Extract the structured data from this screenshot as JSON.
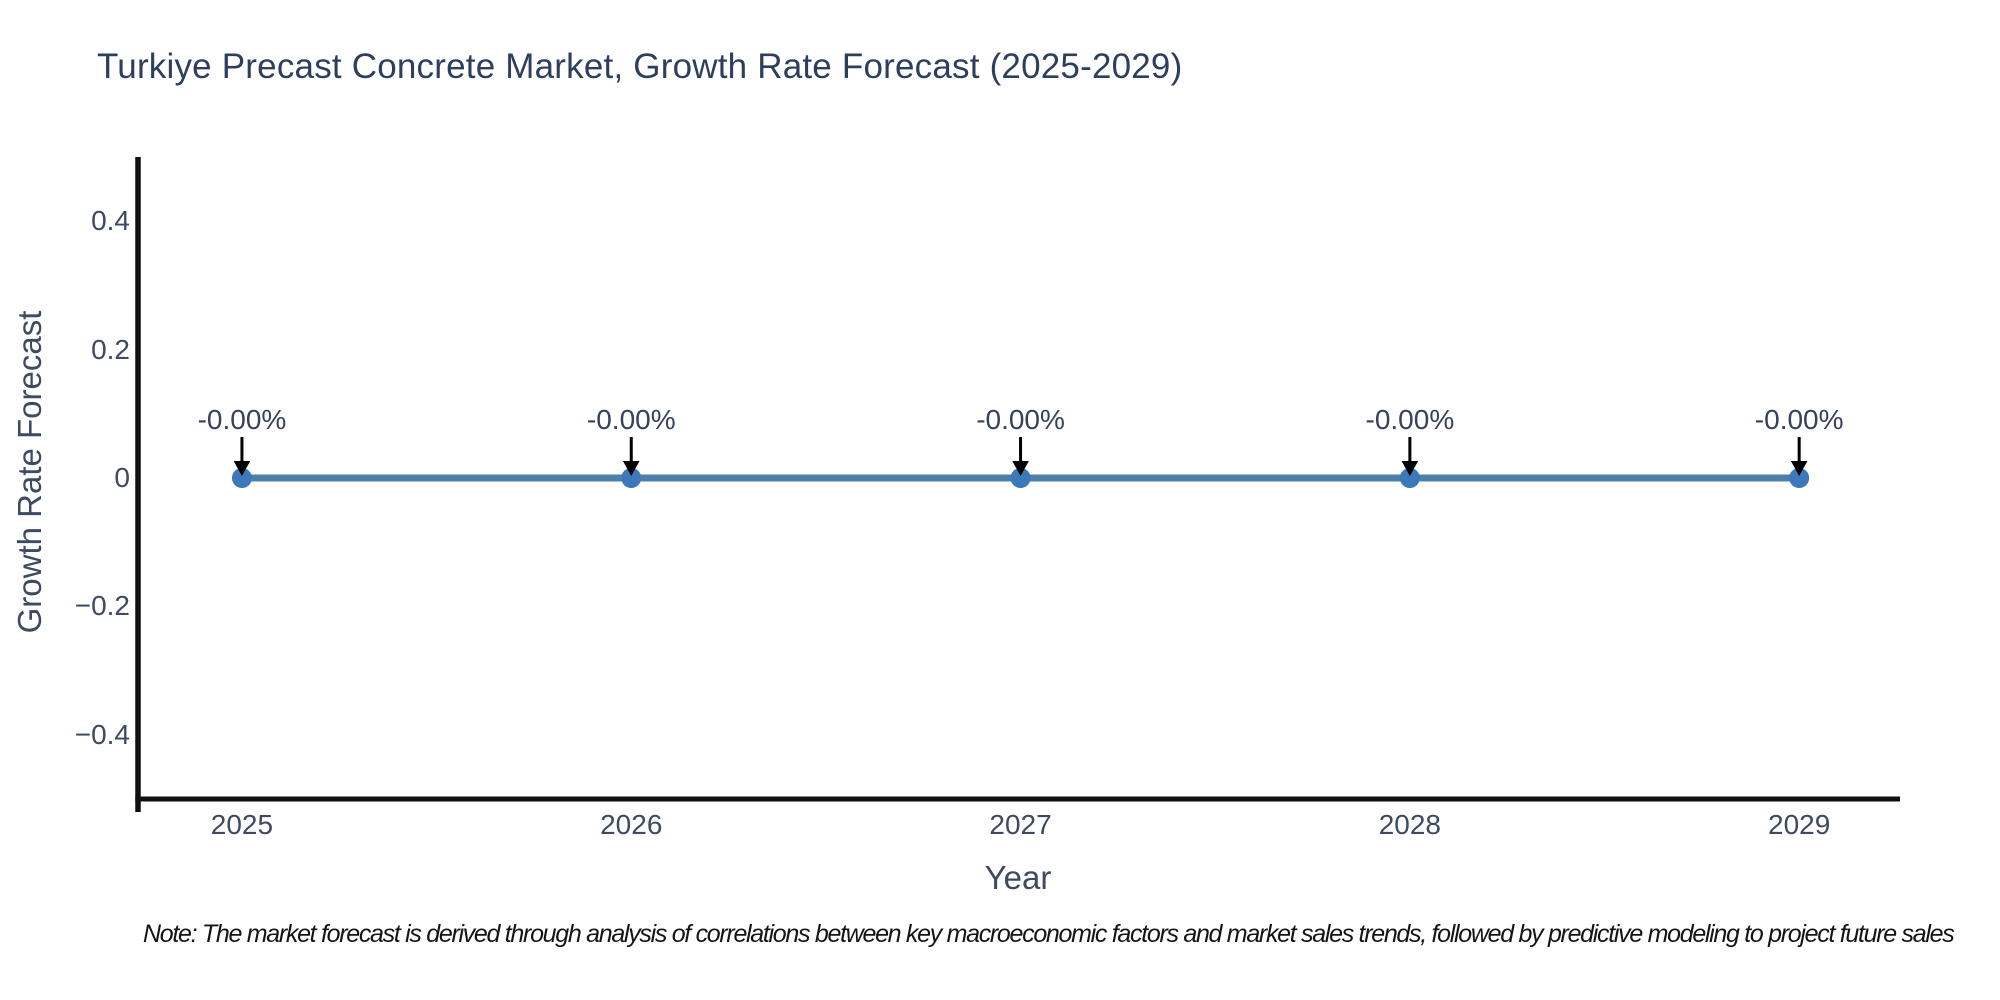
{
  "chart_data": {
    "type": "line",
    "title": "Turkiye Precast Concrete Market, Growth Rate Forecast (2025-2029)",
    "xlabel": "Year",
    "ylabel": "Growth Rate Forecast",
    "categories": [
      "2025",
      "2026",
      "2027",
      "2028",
      "2029"
    ],
    "values": [
      0,
      0,
      0,
      0,
      0
    ],
    "point_labels": [
      "-0.00%",
      "-0.00%",
      "-0.00%",
      "-0.00%",
      "-0.00%"
    ],
    "y_ticks": [
      {
        "value": 0.4,
        "label": "0.4"
      },
      {
        "value": 0.2,
        "label": "0.2"
      },
      {
        "value": 0,
        "label": "0"
      },
      {
        "value": -0.2,
        "label": "−0.2"
      },
      {
        "value": -0.4,
        "label": "−0.4"
      }
    ],
    "ylim": [
      -0.5,
      0.5
    ],
    "xlim": [
      2024.733,
      2029.259
    ],
    "grid": false,
    "legend": false,
    "colors": {
      "line": "#4e7fab",
      "marker": "#3d78b8",
      "spine": "#101010",
      "arrow": "#000000",
      "title_text": "#2e3f5e",
      "label_text": "#3e4a61",
      "annotation_text": "#35425c",
      "note_text": "#141414"
    }
  },
  "note": {
    "text": "Note: The market forecast is derived through analysis of correlations between key macroeconomic factors and market sales trends, followed by predictive modeling to project future sales"
  }
}
